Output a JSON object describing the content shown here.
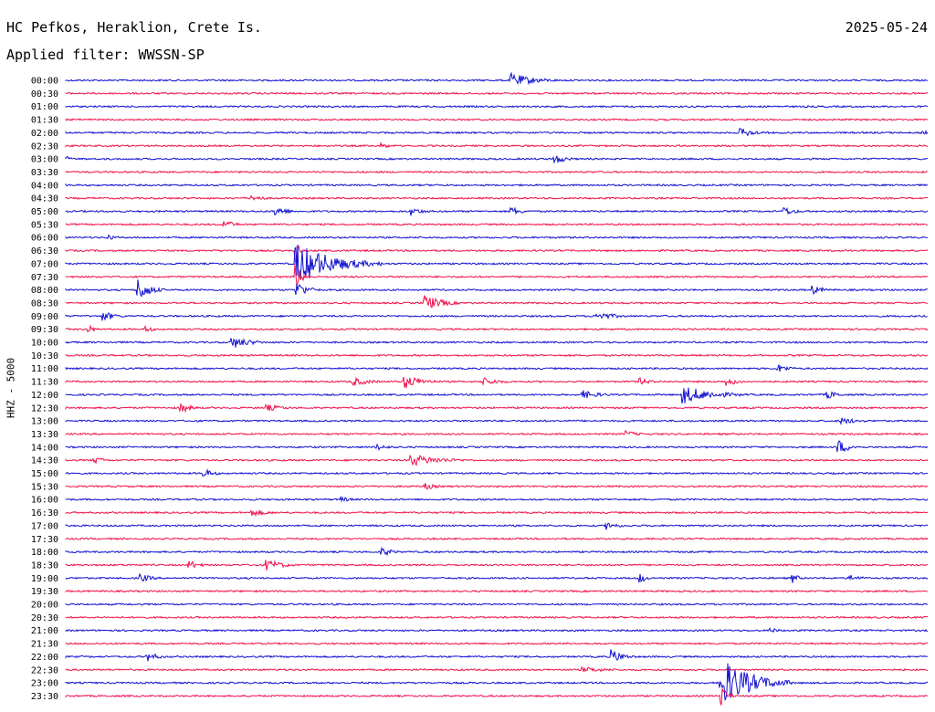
{
  "header": {
    "station": "HC Pefkos, Heraklion, Crete Is.",
    "date": "2025-05-24",
    "filter_label": "Applied filter: WWSSN-SP",
    "channel_label": "HHZ - 5000"
  },
  "colors": {
    "even_row": "#1010d0",
    "odd_row": "#f0104a",
    "text": "#000000"
  },
  "chart_data": {
    "type": "line",
    "title": "HC Pefkos, Heraklion, Crete Is.",
    "ylabel": "HHZ - 5000",
    "rows": [
      "00:00",
      "00:30",
      "01:00",
      "01:30",
      "02:00",
      "02:30",
      "03:00",
      "03:30",
      "04:00",
      "04:30",
      "05:00",
      "05:30",
      "06:00",
      "06:30",
      "07:00",
      "07:30",
      "08:00",
      "08:30",
      "09:00",
      "09:30",
      "10:00",
      "10:30",
      "11:00",
      "11:30",
      "12:00",
      "12:30",
      "13:00",
      "13:30",
      "14:00",
      "14:30",
      "15:00",
      "15:30",
      "16:00",
      "16:30",
      "17:00",
      "17:30",
      "18:00",
      "18:30",
      "19:00",
      "19:30",
      "20:00",
      "20:30",
      "21:00",
      "21:30",
      "22:00",
      "22:30",
      "23:00",
      "23:30"
    ],
    "events": [
      {
        "row": 0,
        "minute": 15.5,
        "amplitude": 8,
        "duration": 2.0
      },
      {
        "row": 4,
        "minute": 23.5,
        "amplitude": 5,
        "duration": 1.5
      },
      {
        "row": 4,
        "minute": 29.8,
        "amplitude": 5,
        "duration": 0.5
      },
      {
        "row": 5,
        "minute": 11.0,
        "amplitude": 3,
        "duration": 1.0
      },
      {
        "row": 6,
        "minute": 0.0,
        "amplitude": 4,
        "duration": 0.4
      },
      {
        "row": 6,
        "minute": 17.0,
        "amplitude": 6,
        "duration": 1.0
      },
      {
        "row": 9,
        "minute": 6.5,
        "amplitude": 4,
        "duration": 1.0
      },
      {
        "row": 10,
        "minute": 7.3,
        "amplitude": 6,
        "duration": 1.0
      },
      {
        "row": 10,
        "minute": 12.0,
        "amplitude": 5,
        "duration": 1.0
      },
      {
        "row": 10,
        "minute": 15.5,
        "amplitude": 5,
        "duration": 1.0
      },
      {
        "row": 10,
        "minute": 25.0,
        "amplitude": 5,
        "duration": 1.0
      },
      {
        "row": 11,
        "minute": 5.5,
        "amplitude": 5,
        "duration": 1.0
      },
      {
        "row": 12,
        "minute": 1.5,
        "amplitude": 5,
        "duration": 0.3
      },
      {
        "row": 13,
        "minute": 8.0,
        "amplitude": 20,
        "duration": 0.2
      },
      {
        "row": 14,
        "minute": 8.0,
        "amplitude": 24,
        "duration": 3.0
      },
      {
        "row": 15,
        "minute": 8.0,
        "amplitude": 16,
        "duration": 0.5
      },
      {
        "row": 16,
        "minute": 2.5,
        "amplitude": 14,
        "duration": 1.0
      },
      {
        "row": 16,
        "minute": 8.0,
        "amplitude": 10,
        "duration": 1.0
      },
      {
        "row": 16,
        "minute": 26.0,
        "amplitude": 5,
        "duration": 1.0
      },
      {
        "row": 17,
        "minute": 12.5,
        "amplitude": 9,
        "duration": 1.5
      },
      {
        "row": 18,
        "minute": 1.3,
        "amplitude": 6,
        "duration": 1.0
      },
      {
        "row": 18,
        "minute": 18.5,
        "amplitude": 5,
        "duration": 1.5
      },
      {
        "row": 19,
        "minute": 0.8,
        "amplitude": 5,
        "duration": 0.5
      },
      {
        "row": 19,
        "minute": 2.8,
        "amplitude": 5,
        "duration": 0.5
      },
      {
        "row": 20,
        "minute": 5.8,
        "amplitude": 7,
        "duration": 1.5
      },
      {
        "row": 22,
        "minute": 24.8,
        "amplitude": 5,
        "duration": 1.0
      },
      {
        "row": 23,
        "minute": 10.0,
        "amplitude": 5,
        "duration": 1.5
      },
      {
        "row": 23,
        "minute": 11.8,
        "amplitude": 8,
        "duration": 1.5
      },
      {
        "row": 23,
        "minute": 14.5,
        "amplitude": 5,
        "duration": 1.5
      },
      {
        "row": 23,
        "minute": 20.0,
        "amplitude": 4,
        "duration": 1.0
      },
      {
        "row": 23,
        "minute": 23.0,
        "amplitude": 5,
        "duration": 1.0
      },
      {
        "row": 24,
        "minute": 18.0,
        "amplitude": 5,
        "duration": 1.5
      },
      {
        "row": 24,
        "minute": 21.5,
        "amplitude": 10,
        "duration": 2.5
      },
      {
        "row": 24,
        "minute": 26.5,
        "amplitude": 5,
        "duration": 1.0
      },
      {
        "row": 25,
        "minute": 4.0,
        "amplitude": 6,
        "duration": 1.0
      },
      {
        "row": 25,
        "minute": 7.0,
        "amplitude": 4,
        "duration": 1.5
      },
      {
        "row": 26,
        "minute": 27.0,
        "amplitude": 4,
        "duration": 1.5
      },
      {
        "row": 27,
        "minute": 19.5,
        "amplitude": 4,
        "duration": 1.0
      },
      {
        "row": 28,
        "minute": 10.8,
        "amplitude": 4,
        "duration": 1.0
      },
      {
        "row": 28,
        "minute": 26.9,
        "amplitude": 8,
        "duration": 1.0
      },
      {
        "row": 29,
        "minute": 1.0,
        "amplitude": 4,
        "duration": 1.0
      },
      {
        "row": 29,
        "minute": 12.0,
        "amplitude": 7,
        "duration": 2.5
      },
      {
        "row": 30,
        "minute": 4.8,
        "amplitude": 5,
        "duration": 1.0
      },
      {
        "row": 31,
        "minute": 12.5,
        "amplitude": 4,
        "duration": 1.0
      },
      {
        "row": 32,
        "minute": 9.6,
        "amplitude": 3,
        "duration": 1.0
      },
      {
        "row": 33,
        "minute": 6.5,
        "amplitude": 4,
        "duration": 1.5
      },
      {
        "row": 34,
        "minute": 18.8,
        "amplitude": 5,
        "duration": 1.0
      },
      {
        "row": 36,
        "minute": 11.0,
        "amplitude": 5,
        "duration": 1.0
      },
      {
        "row": 37,
        "minute": 4.3,
        "amplitude": 5,
        "duration": 1.0
      },
      {
        "row": 37,
        "minute": 7.0,
        "amplitude": 6,
        "duration": 1.5
      },
      {
        "row": 38,
        "minute": 2.6,
        "amplitude": 5,
        "duration": 1.0
      },
      {
        "row": 38,
        "minute": 20.0,
        "amplitude": 6,
        "duration": 0.5
      },
      {
        "row": 38,
        "minute": 25.3,
        "amplitude": 6,
        "duration": 0.5
      },
      {
        "row": 38,
        "minute": 27.3,
        "amplitude": 4,
        "duration": 1.0
      },
      {
        "row": 42,
        "minute": 24.5,
        "amplitude": 3,
        "duration": 1.0
      },
      {
        "row": 44,
        "minute": 2.8,
        "amplitude": 6,
        "duration": 1.0
      },
      {
        "row": 44,
        "minute": 19.0,
        "amplitude": 8,
        "duration": 1.0
      },
      {
        "row": 45,
        "minute": 18.0,
        "amplitude": 3,
        "duration": 3.0
      },
      {
        "row": 46,
        "minute": 22.8,
        "amplitude": 28,
        "duration": 2.5
      },
      {
        "row": 47,
        "minute": 22.8,
        "amplitude": 14,
        "duration": 0.5
      }
    ]
  }
}
